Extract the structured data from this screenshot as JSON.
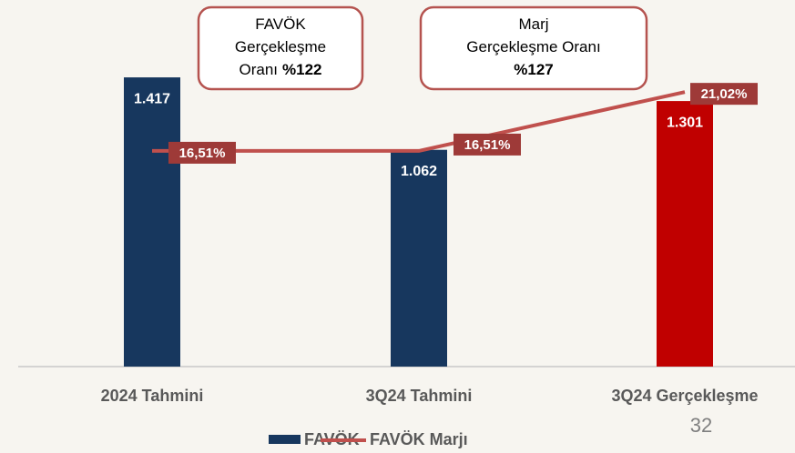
{
  "chart_data": {
    "type": "bar",
    "categories": [
      "2024 Tahmini",
      "3Q24 Tahmini",
      "3Q24 Gerçekleşme"
    ],
    "series": [
      {
        "name": "FAVÖK",
        "color": "#17375e",
        "colors": [
          "#17375e",
          "#17375e",
          "#c00000"
        ],
        "values": [
          1417,
          1062,
          1301
        ],
        "value_labels": [
          "1.417",
          "1.062",
          "1.301"
        ]
      },
      {
        "name": "FAVÖK Marjı",
        "type": "line",
        "axis": "y2",
        "color": "#c0504d",
        "label_color": "#9e3a38",
        "values": [
          16.51,
          16.51,
          21.02
        ],
        "value_labels": [
          "16,51%",
          "16,51%",
          "21,02%"
        ]
      }
    ],
    "ylim": [
      0,
      1600
    ],
    "y2lim": [
      0,
      25
    ],
    "annotations": [
      {
        "lines": [
          {
            "text": "FAVÖK"
          },
          {
            "text": "Gerçekleşme"
          },
          {
            "text": "Oranı",
            "bold": "%122"
          }
        ]
      },
      {
        "lines": [
          {
            "text": "Marj"
          },
          {
            "text": "Gerçekleşme Oranı"
          },
          {
            "bold": "%127"
          }
        ]
      }
    ]
  },
  "page_number": "32"
}
